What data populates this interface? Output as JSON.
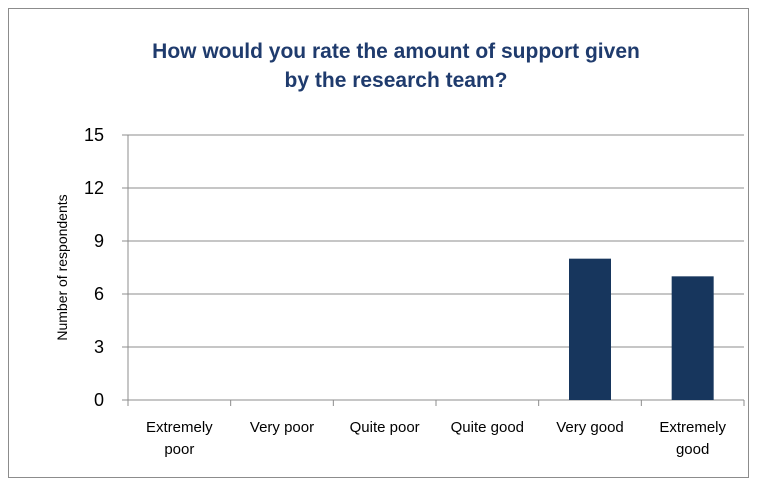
{
  "chart_data": {
    "type": "bar",
    "title": [
      "How would you rate the amount of support given",
      "by the research team?"
    ],
    "xlabel": "",
    "ylabel": "Number of respondents",
    "categories": [
      [
        "Extremely",
        "poor"
      ],
      [
        "Very poor"
      ],
      [
        "Quite poor"
      ],
      [
        "Quite good"
      ],
      [
        "Very good"
      ],
      [
        "Extremely",
        "good"
      ]
    ],
    "values": [
      0,
      0,
      0,
      0,
      8,
      7
    ],
    "ylim": [
      0,
      15
    ],
    "yticks": [
      "0",
      "3",
      "6",
      "9",
      "12",
      "15"
    ],
    "grid": true,
    "legend": "none",
    "bar_color": "#17365d",
    "axis_color": "#8c8c8c",
    "title_color": "#1f3b6d"
  }
}
